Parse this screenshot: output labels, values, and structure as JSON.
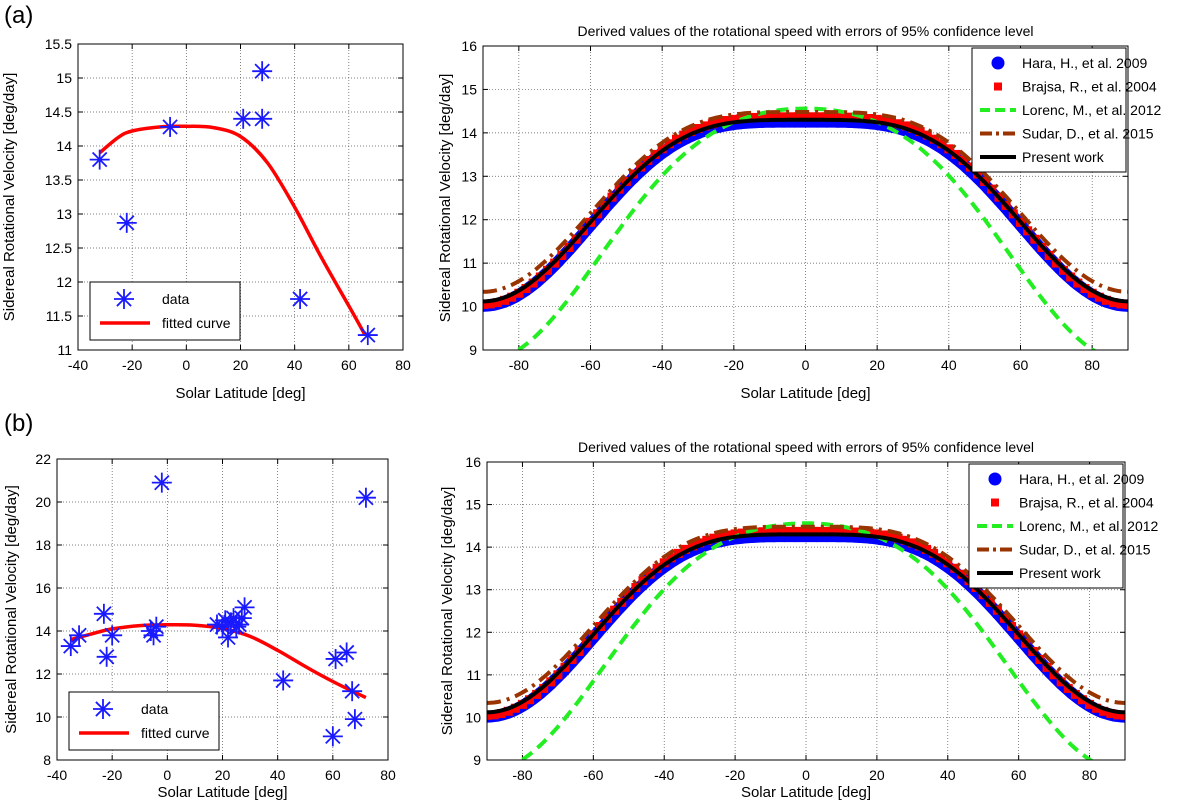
{
  "panel_labels": [
    "(a)",
    "(b)"
  ],
  "chart_data": [
    {
      "id": "a-left",
      "type": "scatter",
      "title": "",
      "xlabel": "Solar Latitude [deg]",
      "ylabel": "Sidereal Rotational Velocity [deg/day]",
      "xlim": [
        -40,
        80
      ],
      "ylim": [
        11,
        15.5
      ],
      "xticks": [
        -40,
        -20,
        0,
        20,
        40,
        60,
        80
      ],
      "yticks": [
        11,
        11.5,
        12,
        12.5,
        13,
        13.5,
        14,
        14.5,
        15,
        15.5
      ],
      "grid": true,
      "legend_position": "bottom-left",
      "series": [
        {
          "name": "data",
          "kind": "points",
          "color": "#1a1aff",
          "x": [
            -32,
            -22,
            -6,
            21,
            28,
            28,
            42,
            67
          ],
          "y": [
            13.8,
            12.87,
            14.28,
            14.4,
            14.4,
            15.1,
            11.75,
            11.22
          ]
        },
        {
          "name": "fitted curve",
          "kind": "curve",
          "color": "#ff0000",
          "x": [
            -32,
            -25,
            -20,
            -10,
            0,
            10,
            20,
            30,
            40,
            50,
            60,
            66
          ],
          "y": [
            13.9,
            14.13,
            14.22,
            14.28,
            14.29,
            14.27,
            14.14,
            13.75,
            13.1,
            12.35,
            11.65,
            11.22
          ]
        }
      ]
    },
    {
      "id": "a-right",
      "type": "line",
      "title": "Derived values  of the rotational speed with errors of 95% confidence level",
      "xlabel": "Solar Latitude [deg]",
      "ylabel": "Sidereal Rotational Velocity [deg/day]",
      "xlim": [
        -90,
        90
      ],
      "ylim": [
        9,
        16
      ],
      "xticks": [
        -80,
        -60,
        -40,
        -20,
        0,
        20,
        40,
        60,
        80
      ],
      "yticks": [
        9,
        10,
        11,
        12,
        13,
        14,
        15,
        16
      ],
      "grid": true,
      "legend_position": "top-right",
      "series": [
        {
          "name": "Hara, H., et al. 2009",
          "style": "blue-dots",
          "color": "#0000ff",
          "A": 14.26,
          "B": 0,
          "C": -4.24
        },
        {
          "name": "Brajsa, R., et al. 2004",
          "style": "red-squares",
          "color": "#ff0000",
          "A": 14.37,
          "B": 0,
          "C": -4.32
        },
        {
          "name": "Lorenc, M., et al. 2012",
          "style": "green-dashed",
          "color": "#22ee22",
          "A": 14.56,
          "B": -2.27,
          "C": -3.56
        },
        {
          "name": "Sudar, D., et al. 2015",
          "style": "brown-dashdot",
          "color": "#993300",
          "A": 14.48,
          "B": 0,
          "C": -4.14
        },
        {
          "name": "Present work",
          "style": "black-solid",
          "color": "#000000",
          "A": 14.3,
          "B": 0,
          "C": -4.18
        }
      ]
    },
    {
      "id": "b-left",
      "type": "scatter",
      "title": "",
      "xlabel": "Solar Latitude [deg]",
      "ylabel": "Sidereal Rotational Velocity [deg/day]",
      "xlim": [
        -40,
        80
      ],
      "ylim": [
        8,
        22
      ],
      "xticks": [
        -40,
        -20,
        0,
        20,
        40,
        60,
        80
      ],
      "yticks": [
        8,
        10,
        12,
        14,
        16,
        18,
        20,
        22
      ],
      "grid": true,
      "legend_position": "bottom-left",
      "series": [
        {
          "name": "data",
          "kind": "points",
          "color": "#1a1aff",
          "x": [
            -35,
            -32,
            -23,
            -22,
            -20,
            -6,
            -5,
            -4,
            -2,
            18,
            20,
            21,
            22,
            23,
            24,
            25,
            26,
            27,
            28,
            42,
            60,
            61,
            65,
            67,
            68,
            72
          ],
          "y": [
            13.3,
            13.8,
            14.8,
            12.8,
            13.8,
            14.0,
            13.8,
            14.2,
            20.9,
            14.3,
            14.2,
            14.5,
            13.7,
            14.4,
            14.6,
            14.2,
            14.3,
            14.6,
            15.1,
            11.7,
            9.1,
            12.7,
            13.0,
            11.2,
            9.9,
            20.2
          ]
        },
        {
          "name": "fitted curve",
          "kind": "curve",
          "color": "#ff0000",
          "x": [
            -35,
            -25,
            -20,
            -10,
            0,
            10,
            20,
            30,
            40,
            50,
            60,
            72
          ],
          "y": [
            13.6,
            13.95,
            14.1,
            14.25,
            14.29,
            14.27,
            14.12,
            13.75,
            13.1,
            12.35,
            11.65,
            10.9
          ]
        }
      ]
    },
    {
      "id": "b-right",
      "type": "line",
      "title": "Derived values  of the rotational speed with errors of 95% confidence level",
      "xlabel": "Solar Latitude [deg]",
      "ylabel": "Sidereal Rotational Velocity [deg/day]",
      "xlim": [
        -90,
        90
      ],
      "ylim": [
        9,
        16
      ],
      "xticks": [
        -80,
        -60,
        -40,
        -20,
        0,
        20,
        40,
        60,
        80
      ],
      "yticks": [
        9,
        10,
        11,
        12,
        13,
        14,
        15,
        16
      ],
      "grid": true,
      "legend_position": "top-right",
      "series": [
        {
          "name": "Hara, H., et al. 2009",
          "style": "blue-dots",
          "color": "#0000ff",
          "A": 14.26,
          "B": 0,
          "C": -4.24
        },
        {
          "name": "Brajsa, R., et al. 2004",
          "style": "red-squares",
          "color": "#ff0000",
          "A": 14.37,
          "B": 0,
          "C": -4.32
        },
        {
          "name": "Lorenc, M., et al. 2012",
          "style": "green-dashed",
          "color": "#22ee22",
          "A": 14.56,
          "B": -2.27,
          "C": -3.56
        },
        {
          "name": "Sudar, D., et al. 2015",
          "style": "brown-dashdot",
          "color": "#993300",
          "A": 14.48,
          "B": 0,
          "C": -4.14
        },
        {
          "name": "Present work",
          "style": "black-solid",
          "color": "#000000",
          "A": 14.3,
          "B": 0,
          "C": -4.18
        }
      ]
    }
  ]
}
